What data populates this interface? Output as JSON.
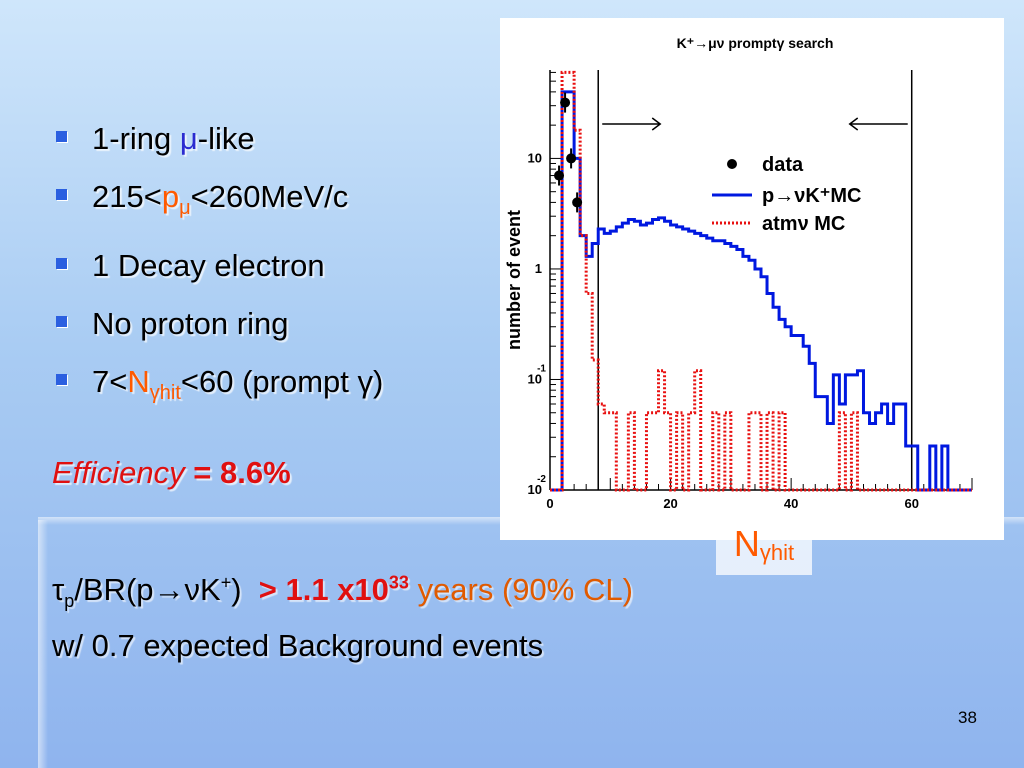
{
  "slide": {
    "bullets": [
      {
        "pre": "1-ring ",
        "hl": "μ",
        "post": "-like"
      },
      {
        "pre": "215<",
        "hl": "p",
        "hl_sub": "μ",
        "post": "<260MeV/c"
      },
      {
        "pre": "1 Decay electron"
      },
      {
        "pre": "No proton ring"
      },
      {
        "pre": "7<",
        "hl": "N",
        "hl_sub": "γhit",
        "post": "<60 (prompt γ)"
      }
    ],
    "efficiency_label": "Efficiency",
    "efficiency_value": " = 8.6%",
    "lifetime": {
      "tau": "τ",
      "tau_sub": "p",
      "br_text": "/BR(p→νK",
      "br_sup": "+",
      "br_close": ")",
      "limit_pre": "> 1.1 x10",
      "limit_exp": "33",
      "limit_post": " years (90% CL)"
    },
    "background_line": {
      "pre": "w/ 0.7 expected ",
      "hl": "Background",
      "post": " events"
    },
    "page_number": "38",
    "nhit_label": "N",
    "nhit_sub": "γhit",
    "colors": {
      "bullet": "#2b5fe0",
      "highlight": "#ff5a00",
      "efficiency": "#e01010",
      "signal_mc": "#0018e0",
      "atm_mc": "#e81010",
      "data": "#000000"
    }
  },
  "chart_data": {
    "type": "line",
    "title": "K⁺→μν promptγ search",
    "xlabel": "",
    "ylabel": "number of event",
    "xlim": [
      0,
      70
    ],
    "ylim_log10": [
      -2,
      1.8
    ],
    "log_y": true,
    "y_ticks": [
      {
        "v": -2,
        "label": "10",
        "exp": "-2"
      },
      {
        "v": -1,
        "label": "10",
        "exp": "-1"
      },
      {
        "v": 0,
        "label": "1",
        "exp": ""
      },
      {
        "v": 1,
        "label": "10",
        "exp": ""
      }
    ],
    "x_ticks": [
      0,
      20,
      40,
      60
    ],
    "cut_lines": [
      8,
      60
    ],
    "legend": [
      "data",
      "p→νK⁺MC",
      "atmν MC"
    ],
    "legend_position": "top-right",
    "series": [
      {
        "name": "p→νK⁺MC",
        "style": "histogram-solid",
        "bin_width": 1,
        "x_start": 0,
        "values": [
          0.01,
          0.01,
          40,
          40,
          10,
          2,
          1.3,
          1.7,
          2.3,
          2.1,
          2.2,
          2.4,
          2.6,
          2.8,
          2.7,
          2.5,
          2.6,
          2.8,
          2.9,
          2.7,
          2.5,
          2.4,
          2.3,
          2.2,
          2.1,
          2.0,
          1.9,
          1.8,
          1.8,
          1.7,
          1.6,
          1.5,
          1.3,
          1.2,
          1.0,
          0.85,
          0.6,
          0.45,
          0.35,
          0.3,
          0.25,
          0.25,
          0.2,
          0.14,
          0.07,
          0.07,
          0.04,
          0.11,
          0.06,
          0.11,
          0.11,
          0.12,
          0.05,
          0.04,
          0.05,
          0.06,
          0.04,
          0.06,
          0.06,
          0.025,
          0.025,
          0.01,
          0.01,
          0.025,
          0.01,
          0.025,
          0.01,
          0.01,
          0.01,
          0.01
        ]
      },
      {
        "name": "atmν MC",
        "style": "histogram-dotted",
        "bin_width": 1,
        "x_start": 0,
        "values": [
          0.01,
          0.01,
          60,
          60,
          18,
          2,
          0.6,
          0.15,
          0.06,
          0.05,
          0.05,
          0.01,
          0.01,
          0.05,
          0.01,
          0.01,
          0.05,
          0.05,
          0.12,
          0.05,
          0.01,
          0.05,
          0.01,
          0.05,
          0.12,
          0.01,
          0.01,
          0.05,
          0.01,
          0.05,
          0.01,
          0.01,
          0.01,
          0.05,
          0.05,
          0.01,
          0.05,
          0.01,
          0.05,
          0.01,
          0.01,
          0.01,
          0.01,
          0.01,
          0.01,
          0.01,
          0.01,
          0.01,
          0.05,
          0.01,
          0.05,
          0.01,
          0.01,
          0.01,
          0.01,
          0.01,
          0.01,
          0.01,
          0.01,
          0.01,
          0.01,
          0.01,
          0.01,
          0.01,
          0.01,
          0.01,
          0.01,
          0.01,
          0.01,
          0.01
        ]
      },
      {
        "name": "data",
        "style": "points",
        "points": [
          {
            "x": 1.5,
            "y": 7
          },
          {
            "x": 2.5,
            "y": 32
          },
          {
            "x": 3.5,
            "y": 10
          },
          {
            "x": 4.5,
            "y": 4
          }
        ]
      }
    ]
  }
}
